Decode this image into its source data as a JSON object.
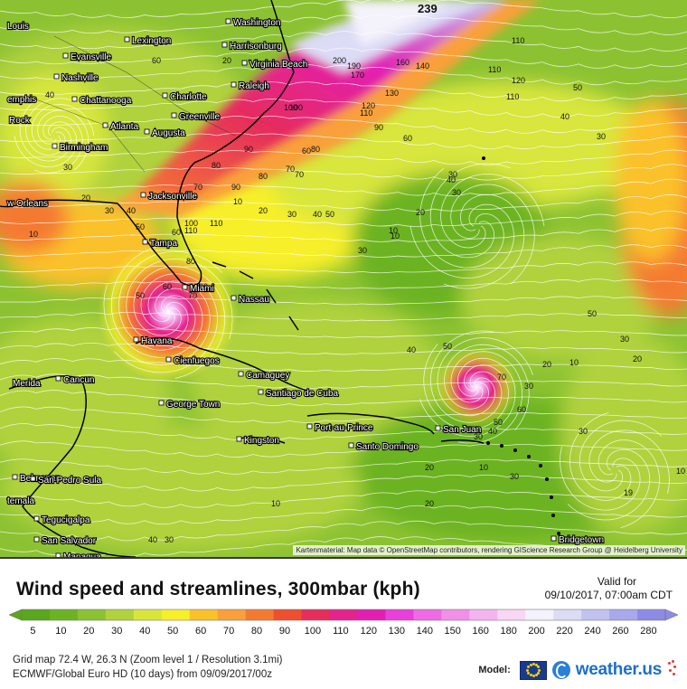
{
  "map": {
    "cities": [
      {
        "name": "Louis"
      },
      {
        "name": "Washington"
      },
      {
        "name": "Lexington"
      },
      {
        "name": "Evansville"
      },
      {
        "name": "Harrisonburg"
      },
      {
        "name": "Nashville"
      },
      {
        "name": "Virginia Beach"
      },
      {
        "name": "emphis"
      },
      {
        "name": "Chattanooga"
      },
      {
        "name": "Charlotte"
      },
      {
        "name": "Raleigh"
      },
      {
        "name": "Rock"
      },
      {
        "name": "Greenville"
      },
      {
        "name": "Atlanta"
      },
      {
        "name": "Augusta"
      },
      {
        "name": "Birmingham"
      },
      {
        "name": "Jacksonville"
      },
      {
        "name": "w Orleans"
      },
      {
        "name": "Tampa"
      },
      {
        "name": "Miami"
      },
      {
        "name": "Nassau"
      },
      {
        "name": "Havana"
      },
      {
        "name": "Cienfuegos"
      },
      {
        "name": "Merida"
      },
      {
        "name": "Cancun"
      },
      {
        "name": "Camaguey"
      },
      {
        "name": "Santiago de Cuba"
      },
      {
        "name": "George Town"
      },
      {
        "name": "Port-au-Prince"
      },
      {
        "name": "San Juan"
      },
      {
        "name": "Santo Domingo"
      },
      {
        "name": "Kingston"
      },
      {
        "name": "Belmopan"
      },
      {
        "name": "San Pedro Sula"
      },
      {
        "name": "temala"
      },
      {
        "name": "Tegucigalpa"
      },
      {
        "name": "San Salvador"
      },
      {
        "name": "Managua"
      },
      {
        "name": "Bridgetown"
      }
    ],
    "contour_labels": [
      "239",
      "20",
      "20",
      "200",
      "190",
      "170",
      "160",
      "140",
      "130",
      "120",
      "110",
      "110",
      "110",
      "120",
      "110",
      "100",
      "90",
      "60",
      "50",
      "40",
      "30",
      "40",
      "30",
      "10",
      "30",
      "100",
      "90",
      "80",
      "70",
      "60",
      "50",
      "40",
      "30",
      "20",
      "10",
      "30",
      "40",
      "50",
      "60",
      "70",
      "80",
      "100",
      "110",
      "110",
      "100",
      "90",
      "80",
      "70",
      "60",
      "50",
      "40",
      "30",
      "20",
      "10",
      "10",
      "20",
      "30",
      "40",
      "50",
      "70",
      "30",
      "20",
      "10",
      "60",
      "50",
      "40",
      "30",
      "20",
      "10",
      "19",
      "30",
      "50",
      "30",
      "20",
      "10",
      "30",
      "20",
      "10",
      "20",
      "30",
      "40",
      "50",
      "60",
      "70",
      "80",
      "90"
    ],
    "attribution": "Kartenmaterial: Map data © OpenStreetMap contributors, rendering GIScience Research Group @ Heidelberg University"
  },
  "legend": {
    "title": "Wind speed and streamlines, 300mbar (kph)",
    "valid_label": "Valid for",
    "valid_value": "09/10/2017, 07:00am CDT",
    "ticks": [
      {
        "label": "5",
        "color": "#5aa61d"
      },
      {
        "label": "10",
        "color": "#6cb323"
      },
      {
        "label": "20",
        "color": "#8cc232"
      },
      {
        "label": "30",
        "color": "#b0d23c"
      },
      {
        "label": "40",
        "color": "#d8e63c"
      },
      {
        "label": "50",
        "color": "#f7ef2a"
      },
      {
        "label": "60",
        "color": "#fbc12a"
      },
      {
        "label": "70",
        "color": "#f9a03a"
      },
      {
        "label": "80",
        "color": "#f47a32"
      },
      {
        "label": "90",
        "color": "#ef4f2e"
      },
      {
        "label": "100",
        "color": "#e62d5c"
      },
      {
        "label": "110",
        "color": "#e4238d"
      },
      {
        "label": "120",
        "color": "#e21fb2"
      },
      {
        "label": "130",
        "color": "#ea3fd8"
      },
      {
        "label": "140",
        "color": "#ef6ae4"
      },
      {
        "label": "150",
        "color": "#f28fe9"
      },
      {
        "label": "160",
        "color": "#f5b3ef"
      },
      {
        "label": "180",
        "color": "#f8d6f5"
      },
      {
        "label": "200",
        "color": "#f4f2fb"
      },
      {
        "label": "220",
        "color": "#dcdcf6"
      },
      {
        "label": "240",
        "color": "#c2c2f0"
      },
      {
        "label": "260",
        "color": "#a8a8ec"
      },
      {
        "label": "280",
        "color": "#8c8ce6"
      }
    ]
  },
  "meta": {
    "grid": "Grid map 72.4 W, 26.3 N (Zoom level 1 / Resolution 3.1mi)",
    "model_run": "ECMWF/Global Euro HD (10 days) from 09/09/2017/00z"
  },
  "brand": {
    "model_label": "Model:",
    "wordmark": "weather",
    "suffix": ".us"
  }
}
